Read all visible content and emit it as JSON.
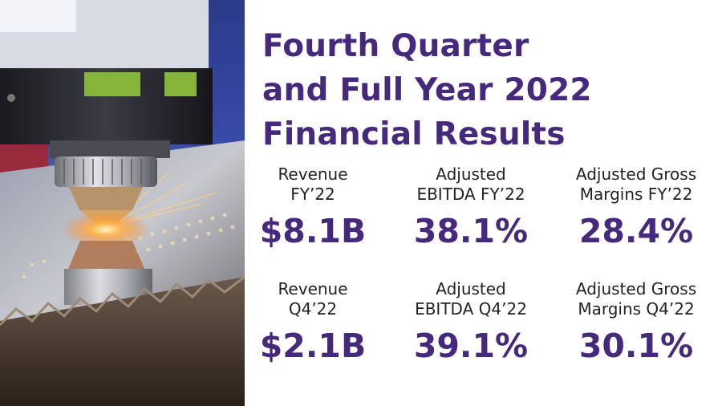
{
  "headline": {
    "lines": [
      "Fourth Quarter",
      "and Full Year 2022",
      "Financial Results"
    ]
  },
  "stats": {
    "fy": [
      {
        "label": [
          "Revenue",
          "FY’22"
        ],
        "value": "$8.1B"
      },
      {
        "label": [
          "Adjusted",
          "EBITDA FY’22"
        ],
        "value": "38.1%"
      },
      {
        "label": [
          "Adjusted Gross",
          "Margins FY’22"
        ],
        "value": "28.4%"
      }
    ],
    "q4": [
      {
        "label": [
          "Revenue",
          "Q4’22"
        ],
        "value": "$2.1B"
      },
      {
        "label": [
          "Adjusted",
          "EBITDA Q4’22"
        ],
        "value": "39.1%"
      },
      {
        "label": [
          "Adjusted Gross",
          "Margins Q4’22"
        ],
        "value": "30.1%"
      }
    ]
  },
  "colors": {
    "accent": "#45297d",
    "label_text": "#222222",
    "background": "#ffffff"
  }
}
